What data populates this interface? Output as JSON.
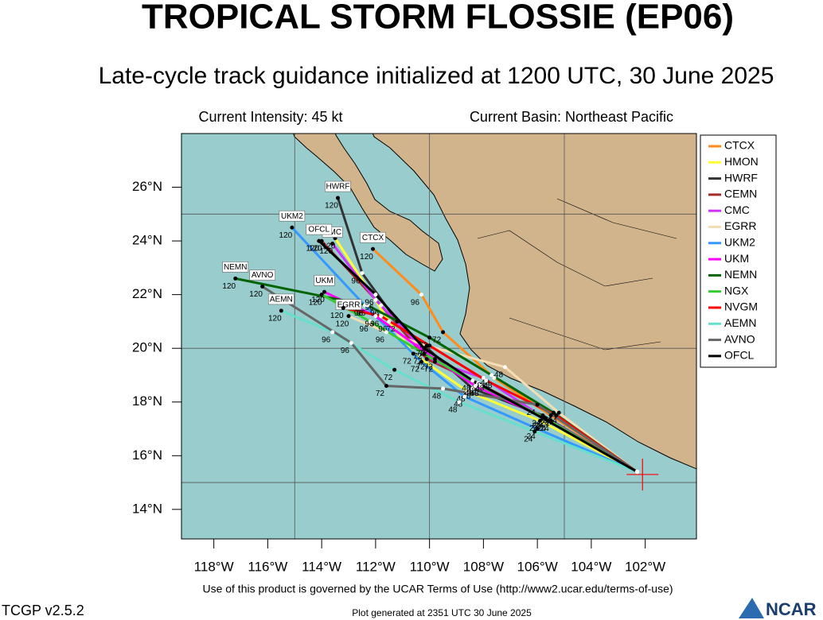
{
  "chart_data": {
    "type": "track-map",
    "title": "TROPICAL STORM FLOSSIE (EP06)",
    "subtitle": "Late-cycle track guidance initialized at 1200 UTC, 30 June 2025",
    "intensity": "Current Intensity: 45 kt",
    "basin": "Current Basin: Northeast Pacific",
    "terms": "Use of this product is governed by the UCAR Terms of Use (http://www2.ucar.edu/terms-of-use)",
    "version": "TCGP v2.5.2",
    "generated": "Plot generated at 2351 UTC   30 June 2025",
    "logo": "NCAR",
    "xlim": [
      -119.2,
      -100.1
    ],
    "ylim": [
      12.9,
      28.0
    ],
    "xticks": [
      {
        "value": -118,
        "label": "118°W"
      },
      {
        "value": -116,
        "label": "116°W"
      },
      {
        "value": -114,
        "label": "114°W"
      },
      {
        "value": -112,
        "label": "112°W"
      },
      {
        "value": -110,
        "label": "110°W"
      },
      {
        "value": -108,
        "label": "108°W"
      },
      {
        "value": -106,
        "label": "106°W"
      },
      {
        "value": -104,
        "label": "104°W"
      },
      {
        "value": -102,
        "label": "102°W"
      }
    ],
    "yticks": [
      {
        "value": 14,
        "label": "14°N"
      },
      {
        "value": 16,
        "label": "16°N"
      },
      {
        "value": 18,
        "label": "18°N"
      },
      {
        "value": 20,
        "label": "20°N"
      },
      {
        "value": 22,
        "label": "22°N"
      },
      {
        "value": 24,
        "label": "24°N"
      },
      {
        "value": 26,
        "label": "26°N"
      }
    ],
    "grid_lons": [
      -115,
      -110,
      -105
    ],
    "grid_lats": [
      25,
      20,
      15
    ],
    "current_position": [
      -102.1,
      15.3
    ],
    "hours": [
      0,
      24,
      48,
      72,
      96,
      120
    ],
    "series": [
      {
        "name": "CTCX",
        "color": "#ff8c1a",
        "boxed": true,
        "lon": [
          -102.3,
          -105.5,
          -107.6,
          -109.5,
          -110.3,
          -112.1
        ],
        "lat": [
          15.4,
          17.5,
          18.9,
          20.6,
          22.0,
          23.7
        ]
      },
      {
        "name": "HMON",
        "color": "#ffff33",
        "boxed": false,
        "lon": [
          -102.3,
          -105.9,
          -108.6,
          -110.6,
          -111.5,
          -113.5
        ],
        "lat": [
          15.4,
          17.3,
          18.4,
          19.8,
          21.0,
          24.1
        ]
      },
      {
        "name": "HWRF",
        "color": "#333333",
        "boxed": true,
        "lon": [
          -102.3,
          -105.8,
          -108.4,
          -111.2,
          -112.5,
          -113.4
        ],
        "lat": [
          15.4,
          17.5,
          18.5,
          21.0,
          22.8,
          25.6
        ]
      },
      {
        "name": "CEMN",
        "color": "#a52a2a",
        "boxed": false,
        "lon": [
          -102.3,
          -105.7,
          -108.2,
          -110.1,
          -111.8,
          -114.0
        ],
        "lat": [
          15.4,
          17.4,
          18.7,
          19.6,
          21.6,
          24.0
        ]
      },
      {
        "name": "CMC",
        "color": "#cc33ff",
        "boxed": true,
        "lon": [
          -102.3,
          -105.6,
          -108.0,
          -109.8,
          -112.0,
          -113.6
        ],
        "lat": [
          15.4,
          17.3,
          18.9,
          19.5,
          21.8,
          23.9
        ]
      },
      {
        "name": "EGRR",
        "color": "#f5deb3",
        "boxed": true,
        "lon": [
          -102.3,
          -105.2,
          -107.2,
          -110.1,
          -111.6,
          -113.0
        ],
        "lat": [
          15.4,
          17.6,
          19.3,
          20.1,
          20.6,
          21.2
        ]
      },
      {
        "name": "UKM2",
        "color": "#3399ff",
        "boxed": true,
        "lon": [
          -102.3,
          -106.0,
          -108.7,
          -110.3,
          -112.4,
          -115.1
        ],
        "lat": [
          15.4,
          17.0,
          18.2,
          19.5,
          21.6,
          24.5
        ]
      },
      {
        "name": "UKM",
        "color": "#ff00ff",
        "boxed": true,
        "lon": [
          -102.3,
          -105.5,
          -108.3,
          -109.8,
          -112.0,
          -113.9
        ],
        "lat": [
          15.4,
          17.3,
          18.6,
          19.6,
          21.2,
          22.1
        ]
      },
      {
        "name": "NEMN",
        "color": "#006400",
        "boxed": true,
        "lon": [
          -102.3,
          -105.4,
          -107.7,
          -110.0,
          -112.3,
          -117.2
        ],
        "lat": [
          15.4,
          17.6,
          19.0,
          20.4,
          21.6,
          22.6
        ]
      },
      {
        "name": "NGX",
        "color": "#33cc33",
        "boxed": false,
        "lon": [
          -102.3,
          -105.7,
          -108.1,
          -110.2,
          -112.2,
          -114.0
        ],
        "lat": [
          15.4,
          17.4,
          18.6,
          19.8,
          21.0,
          22.0
        ]
      },
      {
        "name": "NVGM",
        "color": "#ff0000",
        "boxed": false,
        "lon": [
          -102.3,
          -105.3,
          -107.9,
          -110.0,
          -111.8,
          -113.2
        ],
        "lat": [
          15.4,
          17.5,
          18.8,
          20.1,
          21.2,
          21.5
        ]
      },
      {
        "name": "AEMN",
        "color": "#66e0cc",
        "boxed": true,
        "lon": [
          -102.3,
          -106.1,
          -108.9,
          -111.3,
          -113.6,
          -115.5
        ],
        "lat": [
          15.4,
          16.9,
          18.0,
          19.2,
          20.6,
          21.4
        ]
      },
      {
        "name": "AVNO",
        "color": "#666666",
        "boxed": true,
        "lon": [
          -102.3,
          -106.0,
          -109.5,
          -111.6,
          -112.9,
          -116.2
        ],
        "lat": [
          15.4,
          17.9,
          18.5,
          18.6,
          20.2,
          22.3
        ]
      },
      {
        "name": "OFCL",
        "color": "#000000",
        "boxed": true,
        "lon": [
          -102.3,
          -105.8,
          -108.4,
          -110.2,
          -112.0,
          -114.1
        ],
        "lat": [
          15.4,
          17.4,
          18.8,
          20.0,
          22.0,
          24.0
        ]
      }
    ]
  }
}
